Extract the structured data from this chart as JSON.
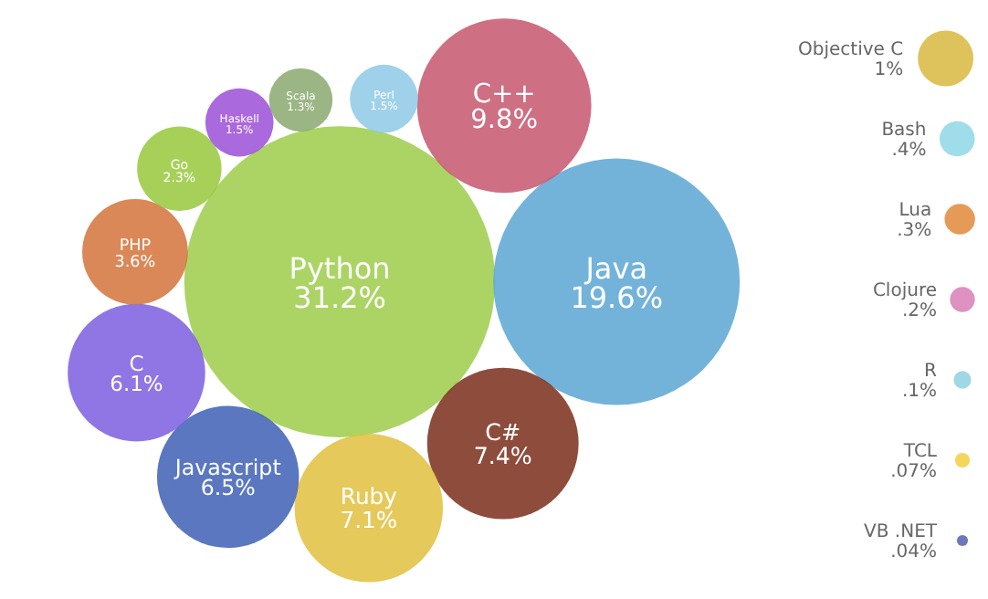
{
  "chart_data": {
    "type": "other",
    "categories": [
      "Python",
      "Java",
      "C++",
      "C#",
      "Ruby",
      "Javascript",
      "C",
      "PHP",
      "Go",
      "Haskell",
      "Perl",
      "Scala",
      "Objective C",
      "Bash",
      "Lua",
      "Clojure",
      "R",
      "TCL",
      "VB .NET"
    ],
    "values": [
      31.2,
      19.6,
      9.8,
      7.4,
      7.1,
      6.5,
      6.1,
      3.6,
      2.3,
      1.5,
      1.5,
      1.3,
      1,
      0.4,
      0.3,
      0.2,
      0.1,
      0.07,
      0.04
    ],
    "value_labels": [
      "31.2%",
      "19.6%",
      "9.8%",
      "7.4%",
      "7.1%",
      "6.5%",
      "6.1%",
      "3.6%",
      "2.3%",
      "1.5%",
      "1.5%",
      "1.3%",
      "1%",
      ".4%",
      ".3%",
      ".2%",
      ".1%",
      ".07%",
      ".04%"
    ],
    "colors": [
      "#9ccc4a",
      "#5aa6d4",
      "#c5566d",
      "#7a2e1a",
      "#e0bf3d",
      "#3d5fb5",
      "#7c5ee0",
      "#d4733a",
      "#98c83c",
      "#9b4fd6",
      "#8fc9e6",
      "#8aa870",
      "#d8b840",
      "#8fd7e8",
      "#e08a3a",
      "#d87fb6",
      "#8fd0e0",
      "#f0d040",
      "#5560b0"
    ]
  }
}
